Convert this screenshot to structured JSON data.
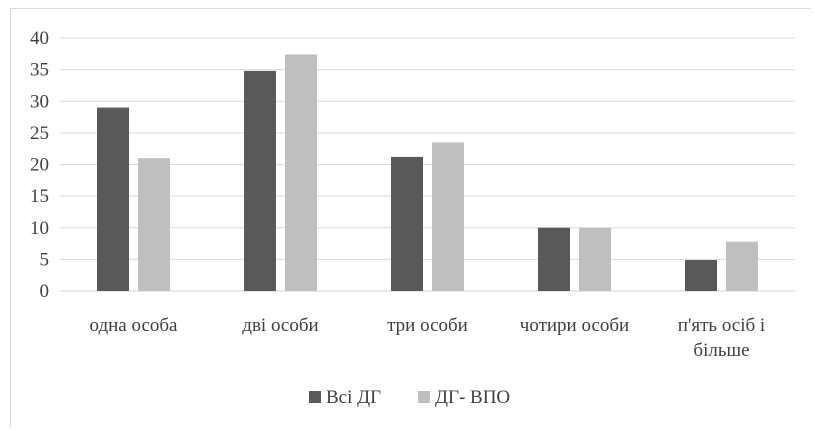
{
  "chart_data": {
    "type": "bar",
    "categories": [
      "одна особа",
      "дві особи",
      "три особи",
      "чотири особи",
      "п'ять осіб і більше"
    ],
    "category_lines": [
      [
        "одна особа"
      ],
      [
        "дві особи"
      ],
      [
        "три особи"
      ],
      [
        "чотири особи"
      ],
      [
        "п'ять осіб і",
        "більше"
      ]
    ],
    "series": [
      {
        "name": "Всі ДГ",
        "values": [
          29,
          34.8,
          21.2,
          10,
          4.9
        ],
        "color": "#595959"
      },
      {
        "name": "ДГ- ВПО",
        "values": [
          21,
          37.4,
          23.5,
          10,
          7.8
        ],
        "color": "#bfbfbf"
      }
    ],
    "ylim": [
      0,
      40
    ],
    "yticks": [
      0,
      5,
      10,
      15,
      20,
      25,
      30,
      35,
      40
    ],
    "grid": true,
    "legend_position": "bottom",
    "title": "",
    "xlabel": "",
    "ylabel": ""
  }
}
